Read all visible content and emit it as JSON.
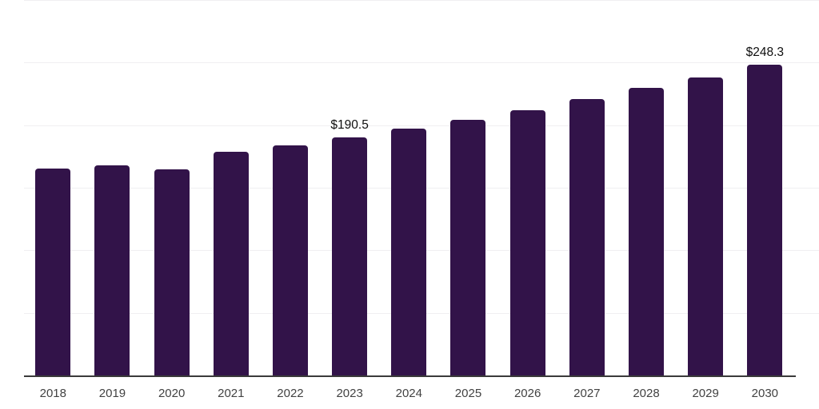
{
  "chart_data": {
    "type": "bar",
    "title": "",
    "xlabel": "",
    "ylabel": "",
    "categories": [
      "2018",
      "2019",
      "2020",
      "2021",
      "2022",
      "2023",
      "2024",
      "2025",
      "2026",
      "2027",
      "2028",
      "2029",
      "2030"
    ],
    "values": [
      165.5,
      168.0,
      164.7,
      179.0,
      184.0,
      190.5,
      197.3,
      204.2,
      212.2,
      220.7,
      229.8,
      238.3,
      248.3
    ],
    "value_labels": {
      "2023": "$190.5",
      "2030": "$248.3"
    },
    "ylim": [
      0,
      300
    ],
    "gridline_step": 50,
    "grid": true,
    "legend": false,
    "colors": {
      "bar": "#321349",
      "axis_line": "#3a3a3a",
      "gridline": "#f0eff1",
      "tick_label": "#424242",
      "value_label": "#0f0f0f",
      "background": "#ffffff"
    }
  }
}
